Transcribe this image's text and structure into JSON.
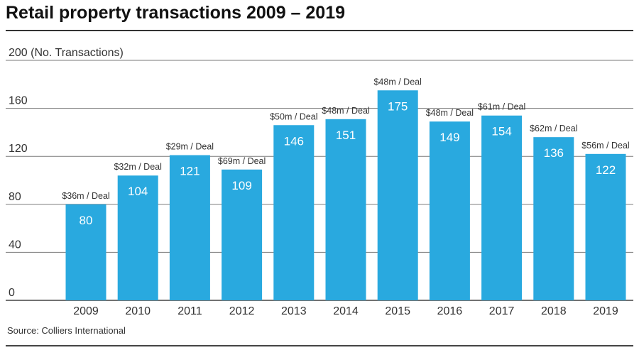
{
  "title": "Retail property transactions 2009 – 2019",
  "source": "Source: Colliers International",
  "colors": {
    "bar": "#29a9df",
    "grid": "#7a7a7a",
    "text": "#333333",
    "bar_text": "#ffffff"
  },
  "chart_data": {
    "type": "bar",
    "title": "Retail property transactions 2009 – 2019",
    "ylabel": "200 (No. Transactions)",
    "xlabel": "",
    "ylim": [
      0,
      200
    ],
    "yticks": [
      0,
      40,
      80,
      120,
      160
    ],
    "grid": true,
    "categories": [
      "2009",
      "2010",
      "2011",
      "2012",
      "2013",
      "2014",
      "2015",
      "2016",
      "2017",
      "2018",
      "2019"
    ],
    "values": [
      80,
      104,
      121,
      109,
      146,
      151,
      175,
      149,
      154,
      136,
      122
    ],
    "annotations": [
      "$36m / Deal",
      "$32m / Deal",
      "$29m / Deal",
      "$69m / Deal",
      "$50m / Deal",
      "$48m / Deal",
      "$48m / Deal",
      "$48m / Deal",
      "$61m / Deal",
      "$62m / Deal",
      "$56m / Deal"
    ]
  }
}
